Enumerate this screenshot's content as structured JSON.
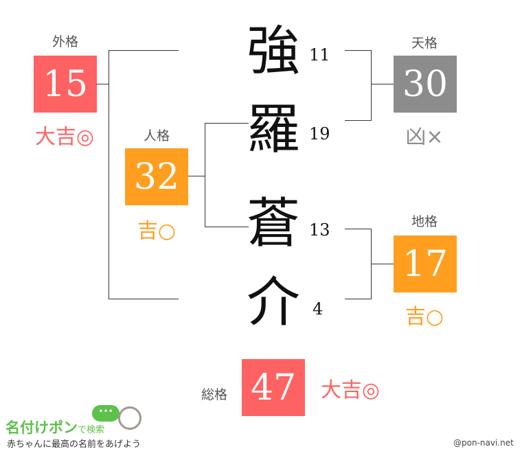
{
  "name_chars": [
    {
      "char": "強",
      "strokes": "11"
    },
    {
      "char": "羅",
      "strokes": "19"
    },
    {
      "char": "蒼",
      "strokes": "13"
    },
    {
      "char": "介",
      "strokes": "4"
    }
  ],
  "gaikaku": {
    "label": "外格",
    "value": "15",
    "fortune": "大吉◎",
    "color": "#ff6262"
  },
  "jinkaku": {
    "label": "人格",
    "value": "32",
    "fortune": "吉○",
    "color": "#ff9e1f"
  },
  "tenkaku": {
    "label": "天格",
    "value": "30",
    "fortune": "凶×",
    "color": "#8c8c8c"
  },
  "chikaku": {
    "label": "地格",
    "value": "17",
    "fortune": "吉○",
    "color": "#ff9e1f"
  },
  "soukaku": {
    "label": "総格",
    "value": "47",
    "fortune": "大吉◎",
    "color": "#ff6262"
  },
  "logo": {
    "title": "名付けポン",
    "suffix": "で検索",
    "tagline": "赤ちゃんに最高の名前をあげよう"
  },
  "credit": "@pon-navi.net"
}
